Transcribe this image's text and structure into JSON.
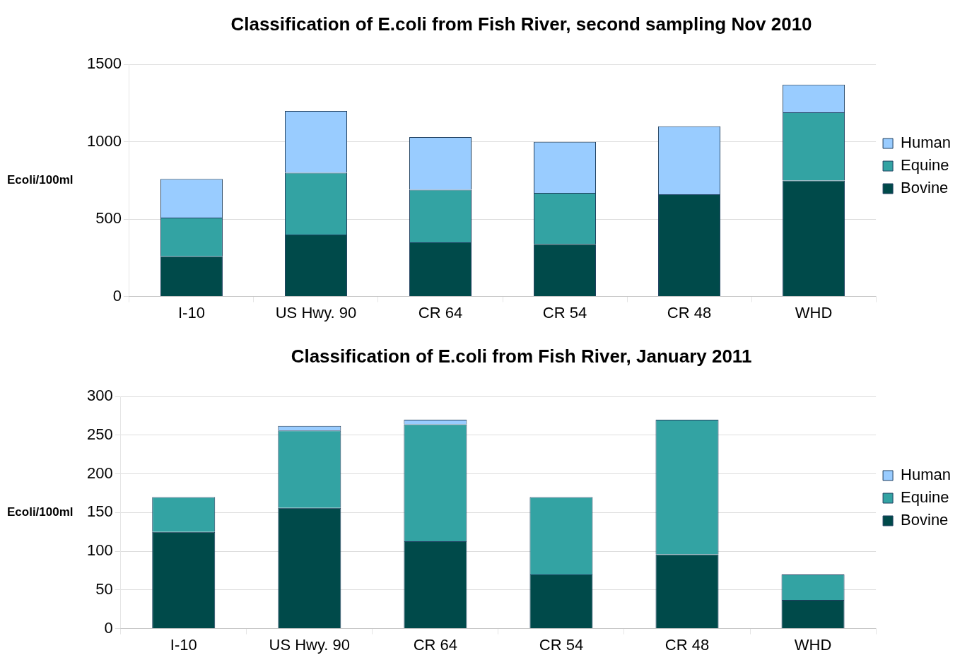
{
  "chart_data": [
    {
      "type": "bar",
      "title": "Classification of E.coli from Fish River, second sampling Nov 2010",
      "ylabel": "Ecoli/100ml",
      "categories": [
        "I-10",
        "US Hwy. 90",
        "CR 64",
        "CR 54",
        "CR 48",
        "WHD"
      ],
      "stacked": true,
      "series": [
        {
          "name": "Bovine",
          "color": "#004a4a",
          "values": [
            260,
            400,
            350,
            340,
            660,
            750
          ]
        },
        {
          "name": "Equine",
          "color": "#33a3a3",
          "values": [
            250,
            400,
            340,
            330,
            0,
            440
          ]
        },
        {
          "name": "Human",
          "color": "#99ccff",
          "values": [
            250,
            400,
            340,
            330,
            440,
            180
          ]
        }
      ],
      "ylim": [
        0,
        1500
      ],
      "yticks": [
        0,
        500,
        1000,
        1500
      ],
      "grid": "y",
      "legend": "right"
    },
    {
      "type": "bar",
      "title": "Classification of E.coli from Fish River, January 2011",
      "ylabel": "Ecoli/100ml",
      "categories": [
        "I-10",
        "US Hwy. 90",
        "CR 64",
        "CR 54",
        "CR 48",
        "WHD"
      ],
      "stacked": true,
      "series": [
        {
          "name": "Bovine",
          "color": "#004a4a",
          "values": [
            125,
            156,
            113,
            70,
            96,
            37
          ]
        },
        {
          "name": "Equine",
          "color": "#33a3a3",
          "values": [
            45,
            100,
            151,
            100,
            174,
            33
          ]
        },
        {
          "name": "Human",
          "color": "#99ccff",
          "values": [
            0,
            6,
            6,
            0,
            0,
            0
          ]
        }
      ],
      "ylim": [
        0,
        300
      ],
      "yticks": [
        0,
        50,
        100,
        150,
        200,
        250,
        300
      ],
      "grid": "y",
      "legend": "right"
    }
  ]
}
